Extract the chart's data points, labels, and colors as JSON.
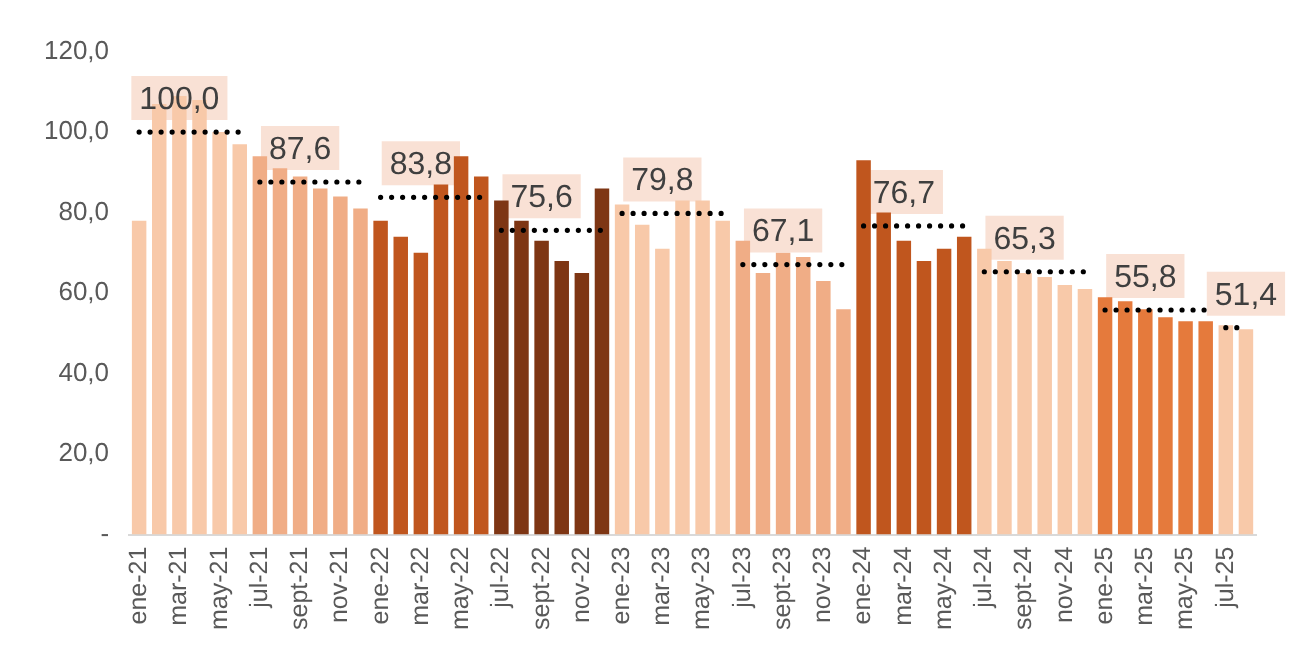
{
  "chart_data": {
    "type": "bar",
    "categories": [
      "ene-21",
      null,
      "mar-21",
      null,
      "may-21",
      null,
      "jul-21",
      null,
      "sept-21",
      null,
      "nov-21",
      null,
      "ene-22",
      null,
      "mar-22",
      null,
      "may-22",
      null,
      "jul-22",
      null,
      "sept-22",
      null,
      "nov-22",
      null,
      "ene-23",
      null,
      "mar-23",
      null,
      "may-23",
      null,
      "jul-23",
      null,
      "sept-23",
      null,
      "nov-23",
      null,
      "ene-24",
      null,
      "mar-24",
      null,
      "may-24",
      null,
      "jul-24",
      null,
      "sept-24",
      null,
      "nov-24",
      null,
      "ene-25",
      null,
      "mar-25",
      null,
      "may-25",
      null,
      "jul-25",
      null
    ],
    "values": [
      78,
      107,
      109,
      108,
      100,
      97,
      94,
      91,
      89,
      86,
      84,
      81,
      78,
      74,
      70,
      87,
      94,
      89,
      83,
      78,
      73,
      68,
      65,
      86,
      82,
      77,
      71,
      83,
      83,
      78,
      73,
      65,
      70,
      69,
      63,
      56,
      93,
      80,
      73,
      68,
      71,
      74,
      71,
      68,
      65,
      64,
      62,
      61,
      59,
      58,
      56,
      54,
      53,
      53,
      52,
      51
    ],
    "colors": [
      "#f8c9a9",
      "#f8c9a9",
      "#f8c9a9",
      "#f8c9a9",
      "#f8c9a9",
      "#f8c9a9",
      "#f0ad86",
      "#f0ad86",
      "#f0ad86",
      "#f0ad86",
      "#f0ad86",
      "#f0ad86",
      "#c0561e",
      "#c0561e",
      "#c0561e",
      "#c0561e",
      "#c0561e",
      "#c0561e",
      "#7e3614",
      "#7e3614",
      "#7e3614",
      "#7e3614",
      "#7e3614",
      "#7e3614",
      "#f8c9a9",
      "#f8c9a9",
      "#f8c9a9",
      "#f8c9a9",
      "#f8c9a9",
      "#f8c9a9",
      "#f0ad86",
      "#f0ad86",
      "#f0ad86",
      "#f0ad86",
      "#f0ad86",
      "#f0ad86",
      "#c0561e",
      "#c0561e",
      "#c0561e",
      "#c0561e",
      "#c0561e",
      "#c0561e",
      "#f8c9a9",
      "#f8c9a9",
      "#f8c9a9",
      "#f8c9a9",
      "#f8c9a9",
      "#f8c9a9",
      "#e57a3c",
      "#e57a3c",
      "#e57a3c",
      "#e57a3c",
      "#e57a3c",
      "#e57a3c",
      "#f8c9a9",
      "#f8c9a9"
    ],
    "series": [
      {
        "type": "line",
        "color": "#000000",
        "line_style": "dotted",
        "values": [
          100,
          100,
          100,
          100,
          100,
          100,
          null,
          null,
          null,
          null,
          null,
          null,
          null,
          null,
          null,
          null,
          null,
          null,
          null,
          null,
          null,
          null,
          null,
          null,
          null,
          null,
          null,
          null,
          null,
          null,
          null,
          null,
          null,
          null,
          null,
          null,
          null,
          null,
          null,
          null,
          null,
          null,
          null,
          null,
          null,
          null,
          null,
          null,
          null,
          null,
          null,
          null,
          null,
          null,
          null,
          null
        ],
        "value_labels": [
          null,
          null,
          "100,0",
          null,
          null,
          null,
          null,
          null,
          null,
          null,
          null,
          null,
          null,
          null,
          null,
          null,
          null,
          null,
          null,
          null,
          null,
          null,
          null,
          null,
          null,
          null,
          null,
          null,
          null,
          null,
          null,
          null,
          null,
          null,
          null,
          null,
          null,
          null,
          null,
          null,
          null,
          null,
          null,
          null,
          null,
          null,
          null,
          null,
          null,
          null,
          null,
          null,
          null,
          null,
          null,
          null
        ]
      },
      {
        "type": "line",
        "color": "#000000",
        "line_style": "dotted",
        "values": [
          null,
          null,
          null,
          null,
          null,
          null,
          87.6,
          87.6,
          87.6,
          87.6,
          87.6,
          87.6,
          null,
          null,
          null,
          null,
          null,
          null,
          null,
          null,
          null,
          null,
          null,
          null,
          null,
          null,
          null,
          null,
          null,
          null,
          null,
          null,
          null,
          null,
          null,
          null,
          null,
          null,
          null,
          null,
          null,
          null,
          null,
          null,
          null,
          null,
          null,
          null,
          null,
          null,
          null,
          null,
          null,
          null,
          null,
          null
        ],
        "value_labels": [
          null,
          null,
          null,
          null,
          null,
          null,
          null,
          null,
          "87,6",
          null,
          null,
          null,
          null,
          null,
          null,
          null,
          null,
          null,
          null,
          null,
          null,
          null,
          null,
          null,
          null,
          null,
          null,
          null,
          null,
          null,
          null,
          null,
          null,
          null,
          null,
          null,
          null,
          null,
          null,
          null,
          null,
          null,
          null,
          null,
          null,
          null,
          null,
          null,
          null,
          null,
          null,
          null,
          null,
          null,
          null,
          null
        ]
      },
      {
        "type": "line",
        "color": "#000000",
        "line_style": "dotted",
        "values": [
          null,
          null,
          null,
          null,
          null,
          null,
          null,
          null,
          null,
          null,
          null,
          null,
          83.8,
          83.8,
          83.8,
          83.8,
          83.8,
          83.8,
          null,
          null,
          null,
          null,
          null,
          null,
          null,
          null,
          null,
          null,
          null,
          null,
          null,
          null,
          null,
          null,
          null,
          null,
          null,
          null,
          null,
          null,
          null,
          null,
          null,
          null,
          null,
          null,
          null,
          null,
          null,
          null,
          null,
          null,
          null,
          null,
          null,
          null
        ],
        "value_labels": [
          null,
          null,
          null,
          null,
          null,
          null,
          null,
          null,
          null,
          null,
          null,
          null,
          null,
          null,
          "83,8",
          null,
          null,
          null,
          null,
          null,
          null,
          null,
          null,
          null,
          null,
          null,
          null,
          null,
          null,
          null,
          null,
          null,
          null,
          null,
          null,
          null,
          null,
          null,
          null,
          null,
          null,
          null,
          null,
          null,
          null,
          null,
          null,
          null,
          null,
          null,
          null,
          null,
          null,
          null,
          null,
          null
        ]
      },
      {
        "type": "line",
        "color": "#000000",
        "line_style": "dotted",
        "values": [
          null,
          null,
          null,
          null,
          null,
          null,
          null,
          null,
          null,
          null,
          null,
          null,
          null,
          null,
          null,
          null,
          null,
          null,
          75.6,
          75.6,
          75.6,
          75.6,
          75.6,
          75.6,
          null,
          null,
          null,
          null,
          null,
          null,
          null,
          null,
          null,
          null,
          null,
          null,
          null,
          null,
          null,
          null,
          null,
          null,
          null,
          null,
          null,
          null,
          null,
          null,
          null,
          null,
          null,
          null,
          null,
          null,
          null,
          null
        ],
        "value_labels": [
          null,
          null,
          null,
          null,
          null,
          null,
          null,
          null,
          null,
          null,
          null,
          null,
          null,
          null,
          null,
          null,
          null,
          null,
          null,
          null,
          "75,6",
          null,
          null,
          null,
          null,
          null,
          null,
          null,
          null,
          null,
          null,
          null,
          null,
          null,
          null,
          null,
          null,
          null,
          null,
          null,
          null,
          null,
          null,
          null,
          null,
          null,
          null,
          null,
          null,
          null,
          null,
          null,
          null,
          null,
          null,
          null
        ]
      },
      {
        "type": "line",
        "color": "#000000",
        "line_style": "dotted",
        "values": [
          null,
          null,
          null,
          null,
          null,
          null,
          null,
          null,
          null,
          null,
          null,
          null,
          null,
          null,
          null,
          null,
          null,
          null,
          null,
          null,
          null,
          null,
          null,
          null,
          79.8,
          79.8,
          79.8,
          79.8,
          79.8,
          79.8,
          null,
          null,
          null,
          null,
          null,
          null,
          null,
          null,
          null,
          null,
          null,
          null,
          null,
          null,
          null,
          null,
          null,
          null,
          null,
          null,
          null,
          null,
          null,
          null,
          null,
          null
        ],
        "value_labels": [
          null,
          null,
          null,
          null,
          null,
          null,
          null,
          null,
          null,
          null,
          null,
          null,
          null,
          null,
          null,
          null,
          null,
          null,
          null,
          null,
          null,
          null,
          null,
          null,
          null,
          null,
          "79,8",
          null,
          null,
          null,
          null,
          null,
          null,
          null,
          null,
          null,
          null,
          null,
          null,
          null,
          null,
          null,
          null,
          null,
          null,
          null,
          null,
          null,
          null,
          null,
          null,
          null,
          null,
          null,
          null,
          null
        ]
      },
      {
        "type": "line",
        "color": "#000000",
        "line_style": "dotted",
        "values": [
          null,
          null,
          null,
          null,
          null,
          null,
          null,
          null,
          null,
          null,
          null,
          null,
          null,
          null,
          null,
          null,
          null,
          null,
          null,
          null,
          null,
          null,
          null,
          null,
          null,
          null,
          null,
          null,
          null,
          null,
          67.1,
          67.1,
          67.1,
          67.1,
          67.1,
          67.1,
          null,
          null,
          null,
          null,
          null,
          null,
          null,
          null,
          null,
          null,
          null,
          null,
          null,
          null,
          null,
          null,
          null,
          null,
          null,
          null
        ],
        "value_labels": [
          null,
          null,
          null,
          null,
          null,
          null,
          null,
          null,
          null,
          null,
          null,
          null,
          null,
          null,
          null,
          null,
          null,
          null,
          null,
          null,
          null,
          null,
          null,
          null,
          null,
          null,
          null,
          null,
          null,
          null,
          null,
          null,
          "67,1",
          null,
          null,
          null,
          null,
          null,
          null,
          null,
          null,
          null,
          null,
          null,
          null,
          null,
          null,
          null,
          null,
          null,
          null,
          null,
          null,
          null,
          null,
          null
        ]
      },
      {
        "type": "line",
        "color": "#000000",
        "line_style": "dotted",
        "values": [
          null,
          null,
          null,
          null,
          null,
          null,
          null,
          null,
          null,
          null,
          null,
          null,
          null,
          null,
          null,
          null,
          null,
          null,
          null,
          null,
          null,
          null,
          null,
          null,
          null,
          null,
          null,
          null,
          null,
          null,
          null,
          null,
          null,
          null,
          null,
          null,
          76.7,
          76.7,
          76.7,
          76.7,
          76.7,
          76.7,
          null,
          null,
          null,
          null,
          null,
          null,
          null,
          null,
          null,
          null,
          null,
          null,
          null,
          null
        ],
        "value_labels": [
          null,
          null,
          null,
          null,
          null,
          null,
          null,
          null,
          null,
          null,
          null,
          null,
          null,
          null,
          null,
          null,
          null,
          null,
          null,
          null,
          null,
          null,
          null,
          null,
          null,
          null,
          null,
          null,
          null,
          null,
          null,
          null,
          null,
          null,
          null,
          null,
          null,
          null,
          "76,7",
          null,
          null,
          null,
          null,
          null,
          null,
          null,
          null,
          null,
          null,
          null,
          null,
          null,
          null,
          null,
          null,
          null
        ]
      },
      {
        "type": "line",
        "color": "#000000",
        "line_style": "dotted",
        "values": [
          null,
          null,
          null,
          null,
          null,
          null,
          null,
          null,
          null,
          null,
          null,
          null,
          null,
          null,
          null,
          null,
          null,
          null,
          null,
          null,
          null,
          null,
          null,
          null,
          null,
          null,
          null,
          null,
          null,
          null,
          null,
          null,
          null,
          null,
          null,
          null,
          null,
          null,
          null,
          null,
          null,
          null,
          65.3,
          65.3,
          65.3,
          65.3,
          65.3,
          65.3,
          null,
          null,
          null,
          null,
          null,
          null,
          null,
          null
        ],
        "value_labels": [
          null,
          null,
          null,
          null,
          null,
          null,
          null,
          null,
          null,
          null,
          null,
          null,
          null,
          null,
          null,
          null,
          null,
          null,
          null,
          null,
          null,
          null,
          null,
          null,
          null,
          null,
          null,
          null,
          null,
          null,
          null,
          null,
          null,
          null,
          null,
          null,
          null,
          null,
          null,
          null,
          null,
          null,
          null,
          null,
          "65,3",
          null,
          null,
          null,
          null,
          null,
          null,
          null,
          null,
          null,
          null,
          null
        ]
      },
      {
        "type": "line",
        "color": "#000000",
        "line_style": "dotted",
        "values": [
          null,
          null,
          null,
          null,
          null,
          null,
          null,
          null,
          null,
          null,
          null,
          null,
          null,
          null,
          null,
          null,
          null,
          null,
          null,
          null,
          null,
          null,
          null,
          null,
          null,
          null,
          null,
          null,
          null,
          null,
          null,
          null,
          null,
          null,
          null,
          null,
          null,
          null,
          null,
          null,
          null,
          null,
          null,
          null,
          null,
          null,
          null,
          null,
          55.8,
          55.8,
          55.8,
          55.8,
          55.8,
          55.8,
          null,
          null
        ],
        "value_labels": [
          null,
          null,
          null,
          null,
          null,
          null,
          null,
          null,
          null,
          null,
          null,
          null,
          null,
          null,
          null,
          null,
          null,
          null,
          null,
          null,
          null,
          null,
          null,
          null,
          null,
          null,
          null,
          null,
          null,
          null,
          null,
          null,
          null,
          null,
          null,
          null,
          null,
          null,
          null,
          null,
          null,
          null,
          null,
          null,
          null,
          null,
          null,
          null,
          null,
          null,
          "55,8",
          null,
          null,
          null,
          null,
          null
        ]
      },
      {
        "type": "line",
        "color": "#000000",
        "line_style": "dotted",
        "values": [
          null,
          null,
          null,
          null,
          null,
          null,
          null,
          null,
          null,
          null,
          null,
          null,
          null,
          null,
          null,
          null,
          null,
          null,
          null,
          null,
          null,
          null,
          null,
          null,
          null,
          null,
          null,
          null,
          null,
          null,
          null,
          null,
          null,
          null,
          null,
          null,
          null,
          null,
          null,
          null,
          null,
          null,
          null,
          null,
          null,
          null,
          null,
          null,
          null,
          null,
          null,
          null,
          null,
          null,
          51.4,
          51.4
        ],
        "value_labels": [
          null,
          null,
          null,
          null,
          null,
          null,
          null,
          null,
          null,
          null,
          null,
          null,
          null,
          null,
          null,
          null,
          null,
          null,
          null,
          null,
          null,
          null,
          null,
          null,
          null,
          null,
          null,
          null,
          null,
          null,
          null,
          null,
          null,
          null,
          null,
          null,
          null,
          null,
          null,
          null,
          null,
          null,
          null,
          null,
          null,
          null,
          null,
          null,
          null,
          null,
          null,
          null,
          null,
          null,
          null,
          "51,4"
        ]
      }
    ],
    "ylim": [
      0,
      120
    ],
    "yticks": [
      {
        "value": 0,
        "label": "-"
      },
      {
        "value": 20,
        "label": "20,0"
      },
      {
        "value": 40,
        "label": "40,0"
      },
      {
        "value": 60,
        "label": "60,0"
      },
      {
        "value": 80,
        "label": "80,0"
      },
      {
        "value": 100,
        "label": "100,0"
      },
      {
        "value": 120,
        "label": "120,0"
      }
    ],
    "grid": false,
    "legend": false,
    "marker": "none"
  }
}
